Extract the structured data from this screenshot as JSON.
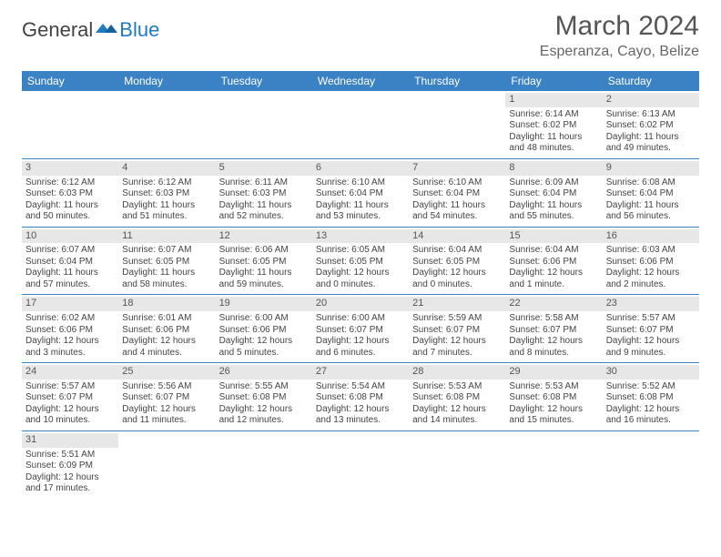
{
  "logo": {
    "general": "General",
    "blue": "Blue"
  },
  "title": "March 2024",
  "location": "Esperanza, Cayo, Belize",
  "colors": {
    "header_bg": "#3b82c4",
    "header_fg": "#ffffff",
    "daynum_bg": "#e7e7e7",
    "rule": "#3b82c4",
    "logo_blue": "#1f7bbf",
    "text": "#444444"
  },
  "weekdays": [
    "Sunday",
    "Monday",
    "Tuesday",
    "Wednesday",
    "Thursday",
    "Friday",
    "Saturday"
  ],
  "weeks": [
    [
      null,
      null,
      null,
      null,
      null,
      {
        "n": "1",
        "sr": "6:14 AM",
        "ss": "6:02 PM",
        "dl": "11 hours and 48 minutes."
      },
      {
        "n": "2",
        "sr": "6:13 AM",
        "ss": "6:02 PM",
        "dl": "11 hours and 49 minutes."
      }
    ],
    [
      {
        "n": "3",
        "sr": "6:12 AM",
        "ss": "6:03 PM",
        "dl": "11 hours and 50 minutes."
      },
      {
        "n": "4",
        "sr": "6:12 AM",
        "ss": "6:03 PM",
        "dl": "11 hours and 51 minutes."
      },
      {
        "n": "5",
        "sr": "6:11 AM",
        "ss": "6:03 PM",
        "dl": "11 hours and 52 minutes."
      },
      {
        "n": "6",
        "sr": "6:10 AM",
        "ss": "6:04 PM",
        "dl": "11 hours and 53 minutes."
      },
      {
        "n": "7",
        "sr": "6:10 AM",
        "ss": "6:04 PM",
        "dl": "11 hours and 54 minutes."
      },
      {
        "n": "8",
        "sr": "6:09 AM",
        "ss": "6:04 PM",
        "dl": "11 hours and 55 minutes."
      },
      {
        "n": "9",
        "sr": "6:08 AM",
        "ss": "6:04 PM",
        "dl": "11 hours and 56 minutes."
      }
    ],
    [
      {
        "n": "10",
        "sr": "6:07 AM",
        "ss": "6:04 PM",
        "dl": "11 hours and 57 minutes."
      },
      {
        "n": "11",
        "sr": "6:07 AM",
        "ss": "6:05 PM",
        "dl": "11 hours and 58 minutes."
      },
      {
        "n": "12",
        "sr": "6:06 AM",
        "ss": "6:05 PM",
        "dl": "11 hours and 59 minutes."
      },
      {
        "n": "13",
        "sr": "6:05 AM",
        "ss": "6:05 PM",
        "dl": "12 hours and 0 minutes."
      },
      {
        "n": "14",
        "sr": "6:04 AM",
        "ss": "6:05 PM",
        "dl": "12 hours and 0 minutes."
      },
      {
        "n": "15",
        "sr": "6:04 AM",
        "ss": "6:06 PM",
        "dl": "12 hours and 1 minute."
      },
      {
        "n": "16",
        "sr": "6:03 AM",
        "ss": "6:06 PM",
        "dl": "12 hours and 2 minutes."
      }
    ],
    [
      {
        "n": "17",
        "sr": "6:02 AM",
        "ss": "6:06 PM",
        "dl": "12 hours and 3 minutes."
      },
      {
        "n": "18",
        "sr": "6:01 AM",
        "ss": "6:06 PM",
        "dl": "12 hours and 4 minutes."
      },
      {
        "n": "19",
        "sr": "6:00 AM",
        "ss": "6:06 PM",
        "dl": "12 hours and 5 minutes."
      },
      {
        "n": "20",
        "sr": "6:00 AM",
        "ss": "6:07 PM",
        "dl": "12 hours and 6 minutes."
      },
      {
        "n": "21",
        "sr": "5:59 AM",
        "ss": "6:07 PM",
        "dl": "12 hours and 7 minutes."
      },
      {
        "n": "22",
        "sr": "5:58 AM",
        "ss": "6:07 PM",
        "dl": "12 hours and 8 minutes."
      },
      {
        "n": "23",
        "sr": "5:57 AM",
        "ss": "6:07 PM",
        "dl": "12 hours and 9 minutes."
      }
    ],
    [
      {
        "n": "24",
        "sr": "5:57 AM",
        "ss": "6:07 PM",
        "dl": "12 hours and 10 minutes."
      },
      {
        "n": "25",
        "sr": "5:56 AM",
        "ss": "6:07 PM",
        "dl": "12 hours and 11 minutes."
      },
      {
        "n": "26",
        "sr": "5:55 AM",
        "ss": "6:08 PM",
        "dl": "12 hours and 12 minutes."
      },
      {
        "n": "27",
        "sr": "5:54 AM",
        "ss": "6:08 PM",
        "dl": "12 hours and 13 minutes."
      },
      {
        "n": "28",
        "sr": "5:53 AM",
        "ss": "6:08 PM",
        "dl": "12 hours and 14 minutes."
      },
      {
        "n": "29",
        "sr": "5:53 AM",
        "ss": "6:08 PM",
        "dl": "12 hours and 15 minutes."
      },
      {
        "n": "30",
        "sr": "5:52 AM",
        "ss": "6:08 PM",
        "dl": "12 hours and 16 minutes."
      }
    ],
    [
      {
        "n": "31",
        "sr": "5:51 AM",
        "ss": "6:09 PM",
        "dl": "12 hours and 17 minutes."
      },
      null,
      null,
      null,
      null,
      null,
      null
    ]
  ],
  "labels": {
    "sunrise": "Sunrise: ",
    "sunset": "Sunset: ",
    "daylight": "Daylight: "
  }
}
